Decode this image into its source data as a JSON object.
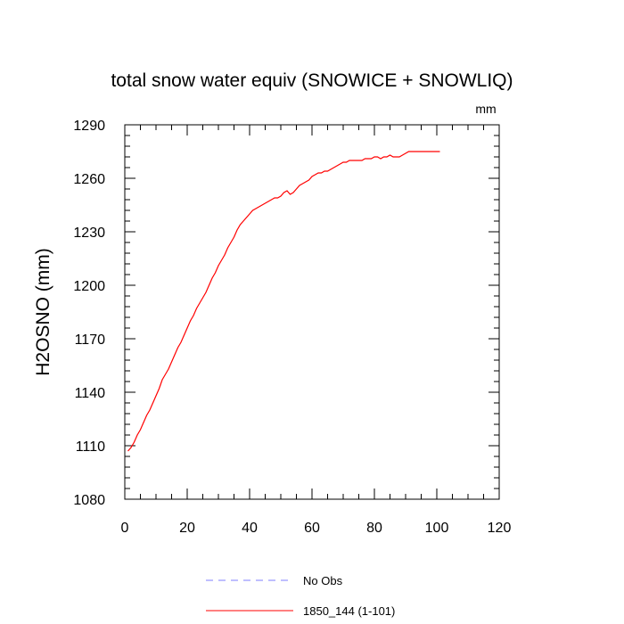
{
  "chart_data": {
    "type": "line",
    "title": "total snow water equiv (SNOWICE + SNOWLIQ)",
    "units": "mm",
    "xlabel": "",
    "ylabel": "H2OSNO  (mm)",
    "xlim": [
      0,
      120
    ],
    "ylim": [
      1080,
      1290
    ],
    "xticks": [
      0,
      20,
      40,
      60,
      80,
      100,
      120
    ],
    "yticks": [
      1080,
      1110,
      1140,
      1170,
      1200,
      1230,
      1260,
      1290
    ],
    "grid": false,
    "legend_position": "bottom",
    "series": [
      {
        "name": "No Obs",
        "color": "#7f7fff",
        "style": "dashed",
        "x": [],
        "y": []
      },
      {
        "name": "1850_144 (1-101)",
        "color": "#ff0000",
        "style": "solid",
        "x": [
          1,
          2,
          3,
          4,
          5,
          6,
          7,
          8,
          9,
          10,
          11,
          12,
          13,
          14,
          15,
          16,
          17,
          18,
          19,
          20,
          21,
          22,
          23,
          24,
          25,
          26,
          27,
          28,
          29,
          30,
          31,
          32,
          33,
          34,
          35,
          36,
          37,
          38,
          39,
          40,
          41,
          42,
          43,
          44,
          45,
          46,
          47,
          48,
          49,
          50,
          51,
          52,
          53,
          54,
          55,
          56,
          57,
          58,
          59,
          60,
          61,
          62,
          63,
          64,
          65,
          66,
          67,
          68,
          69,
          70,
          71,
          72,
          73,
          74,
          75,
          76,
          77,
          78,
          79,
          80,
          81,
          82,
          83,
          84,
          85,
          86,
          87,
          88,
          89,
          90,
          91,
          92,
          93,
          94,
          95,
          96,
          97,
          98,
          99,
          100,
          101
        ],
        "y": [
          1107,
          1109,
          1112,
          1116,
          1119,
          1123,
          1127,
          1130,
          1134,
          1138,
          1142,
          1147,
          1150,
          1153,
          1157,
          1161,
          1165,
          1168,
          1172,
          1176,
          1180,
          1183,
          1187,
          1190,
          1193,
          1196,
          1200,
          1204,
          1207,
          1211,
          1214,
          1217,
          1221,
          1224,
          1227,
          1231,
          1234,
          1236,
          1238,
          1240,
          1242,
          1243,
          1244,
          1245,
          1246,
          1247,
          1248,
          1249,
          1249,
          1250,
          1252,
          1253,
          1251,
          1252,
          1254,
          1256,
          1257,
          1258,
          1259,
          1261,
          1262,
          1263,
          1263,
          1264,
          1264,
          1265,
          1266,
          1267,
          1268,
          1269,
          1269,
          1270,
          1270,
          1270,
          1270,
          1270,
          1271,
          1271,
          1271,
          1272,
          1272,
          1271,
          1272,
          1272,
          1273,
          1272,
          1272,
          1272,
          1273,
          1274,
          1275,
          1275,
          1275,
          1275,
          1275,
          1275,
          1275,
          1275,
          1275,
          1275,
          1275
        ]
      }
    ]
  }
}
